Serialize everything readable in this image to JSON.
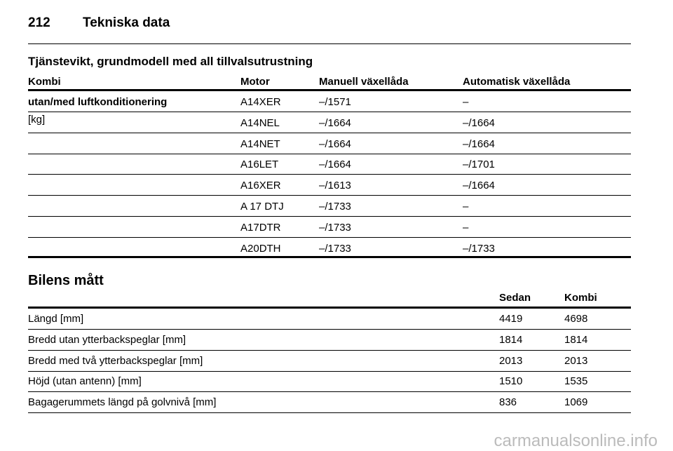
{
  "header": {
    "page_number": "212",
    "title": "Tekniska data"
  },
  "weight_table": {
    "title": "Tjänstevikt, grundmodell med all tillvalsutrustning",
    "columns": [
      "Kombi",
      "Motor",
      "Manuell växellåda",
      "Automatisk växellåda"
    ],
    "group_label": "utan/med luftkonditionering",
    "group_unit": "[kg]",
    "rows": [
      [
        "A14XER",
        "–/1571",
        "–"
      ],
      [
        "A14NEL",
        "–/1664",
        "–/1664"
      ],
      [
        "A14NET",
        "–/1664",
        "–/1664"
      ],
      [
        "A16LET",
        "–/1664",
        "–/1701"
      ],
      [
        "A16XER",
        "–/1613",
        "–/1664"
      ],
      [
        "A 17 DTJ",
        "–/1733",
        "–"
      ],
      [
        "A17DTR",
        "–/1733",
        "–"
      ],
      [
        "A20DTH",
        "–/1733",
        "–/1733"
      ]
    ]
  },
  "dimensions_table": {
    "title": "Bilens mått",
    "columns": [
      "Sedan",
      "Kombi"
    ],
    "rows": [
      [
        "Längd [mm]",
        4419,
        4698
      ],
      [
        "Bredd utan ytterbackspeglar [mm]",
        1814,
        1814
      ],
      [
        "Bredd med två ytterbackspeglar [mm]",
        2013,
        2013
      ],
      [
        "Höjd (utan antenn) [mm]",
        1510,
        1535
      ],
      [
        "Bagagerummets längd på golvnivå [mm]",
        836,
        1069
      ]
    ]
  },
  "watermark": "carmanualsonline.info"
}
